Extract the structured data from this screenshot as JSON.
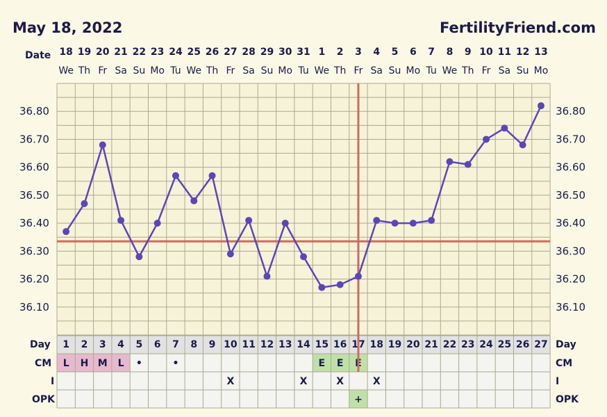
{
  "header": {
    "date": "May 18, 2022",
    "brand": "FertilityFriend.com",
    "date_row_label": "Date",
    "day_row_label": "Day"
  },
  "rows": {
    "cm_label": "CM",
    "i_label": "I",
    "opk_label": "OPK"
  },
  "colors": {
    "line": "#5b46b8",
    "coverline": "#cf6a5e",
    "grid": "#a9a990",
    "plot_bg": "#f7f3d9",
    "row_bg": "#f4f4f0",
    "day_row_bg": "#e2e2e2",
    "cm_pink": "#e8b9cc",
    "cm_green": "#bfe1a8"
  },
  "chart_data": {
    "type": "line",
    "dates": [
      "18",
      "19",
      "20",
      "21",
      "22",
      "23",
      "24",
      "25",
      "26",
      "27",
      "28",
      "29",
      "30",
      "31",
      "1",
      "2",
      "3",
      "4",
      "5",
      "6",
      "7",
      "8",
      "9",
      "10",
      "11",
      "12",
      "13"
    ],
    "weekdays": [
      "We",
      "Th",
      "Fr",
      "Sa",
      "Su",
      "Mo",
      "Tu",
      "We",
      "Th",
      "Fr",
      "Sa",
      "Su",
      "Mo",
      "Tu",
      "We",
      "Th",
      "Fr",
      "Sa",
      "Su",
      "Mo",
      "Tu",
      "We",
      "Th",
      "Fr",
      "Sa",
      "Su",
      "Mo"
    ],
    "days": [
      "1",
      "2",
      "3",
      "4",
      "5",
      "6",
      "7",
      "8",
      "9",
      "10",
      "11",
      "12",
      "13",
      "14",
      "15",
      "16",
      "17",
      "18",
      "19",
      "20",
      "21",
      "22",
      "23",
      "24",
      "25",
      "26",
      "27"
    ],
    "values": [
      36.37,
      36.47,
      36.68,
      36.41,
      36.28,
      36.4,
      36.57,
      36.48,
      36.57,
      36.29,
      36.41,
      36.21,
      36.4,
      36.28,
      36.17,
      36.18,
      36.21,
      36.41,
      36.4,
      36.4,
      36.41,
      36.62,
      36.61,
      36.7,
      36.74,
      36.68,
      36.82
    ],
    "ylim": [
      36.0,
      36.9
    ],
    "yticks": [
      "36.10",
      "36.20",
      "36.30",
      "36.40",
      "36.50",
      "36.60",
      "36.70",
      "36.80"
    ],
    "coverline": 36.335,
    "ovulation_day": 17,
    "cm": [
      "L",
      "H",
      "M",
      "L",
      "•",
      "",
      "•",
      "",
      "",
      "",
      "",
      "",
      "",
      "",
      "E",
      "E",
      "E",
      "",
      "",
      "",
      "",
      "",
      "",
      "",
      "",
      "",
      ""
    ],
    "intercourse": [
      "",
      "",
      "",
      "",
      "",
      "",
      "",
      "",
      "",
      "X",
      "",
      "",
      "",
      "X",
      "",
      "X",
      "",
      "X",
      "",
      "",
      "",
      "",
      "",
      "",
      "",
      "",
      ""
    ],
    "opk": [
      "",
      "",
      "",
      "",
      "",
      "",
      "",
      "",
      "",
      "",
      "",
      "",
      "",
      "",
      "",
      "",
      "+",
      "",
      "",
      "",
      "",
      "",
      "",
      "",
      "",
      "",
      ""
    ],
    "grid": true
  }
}
